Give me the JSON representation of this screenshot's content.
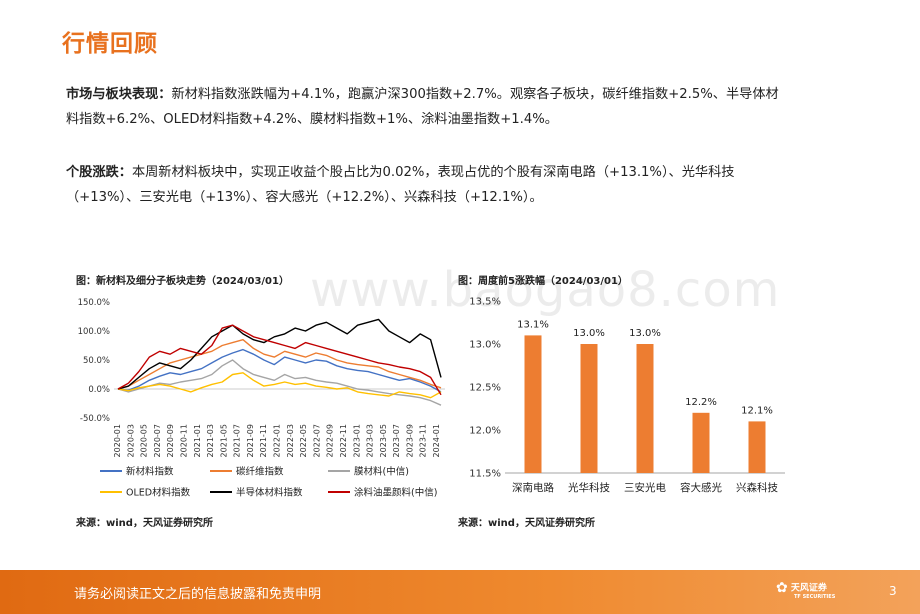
{
  "section_title": "行情回顾",
  "para1": {
    "label": "市场与板块表现：",
    "line1": "新材料指数涨跌幅为+4.1%，跑赢沪深300指数+2.7%。观察各子板块，碳纤维指数+2.5%、半导体材",
    "line2": "料指数+6.2%、OLED材料指数+4.2%、膜材料指数+1%、涂料油墨指数+1.4%。"
  },
  "para2": {
    "label": "个股涨跌：",
    "line1": "本周新材料板块中，实现正收益个股占比为0.02%，表现占优的个股有深南电路（+13.1%）、光华科技",
    "line2": "（+13%）、三安光电（+13%）、容大感光（+12.2%）、兴森科技（+12.1%）。"
  },
  "watermark": "www.baogao8.com",
  "chart1": {
    "title": "图：新材料及细分子板块走势（2024/03/01）",
    "source": "来源：wind，天风证券研究所"
  },
  "chart2": {
    "title": "图：周度前5涨跌幅（2024/03/01）",
    "source": "来源：wind，天风证券研究所"
  },
  "footer": {
    "disclaimer": "请务必阅读正文之后的信息披露和免责申明",
    "logo_text": "天风证券",
    "logo_sub": "TF SECURITIES",
    "page": "3"
  },
  "chart_data": [
    {
      "type": "line",
      "title": "图：新材料及细分子板块走势（2024/03/01）",
      "x_ticks": [
        "2020-01",
        "2020-03",
        "2020-05",
        "2020-07",
        "2020-09",
        "2020-11",
        "2021-01",
        "2021-03",
        "2021-05",
        "2021-07",
        "2021-09",
        "2021-11",
        "2022-01",
        "2022-03",
        "2022-05",
        "2022-07",
        "2022-09",
        "2022-11",
        "2023-01",
        "2023-03",
        "2023-05",
        "2023-07",
        "2023-09",
        "2023-11",
        "2024-01"
      ],
      "y_ticks": [
        "150.0%",
        "100.0%",
        "50.0%",
        "0.0%",
        "-50.0%"
      ],
      "ylim": [
        -50,
        150
      ],
      "series": [
        {
          "name": "新材料指数",
          "color": "#4472c4",
          "values": [
            0,
            -2,
            5,
            15,
            22,
            28,
            25,
            30,
            35,
            45,
            55,
            62,
            68,
            60,
            50,
            42,
            55,
            50,
            45,
            50,
            48,
            40,
            35,
            32,
            30,
            25,
            20,
            15,
            18,
            12,
            5,
            -5
          ]
        },
        {
          "name": "碳纤维指数",
          "color": "#ed7d31",
          "values": [
            0,
            5,
            15,
            25,
            35,
            45,
            50,
            55,
            60,
            65,
            75,
            80,
            85,
            70,
            60,
            55,
            65,
            60,
            55,
            62,
            58,
            50,
            45,
            42,
            40,
            38,
            30,
            25,
            20,
            15,
            8,
            2
          ]
        },
        {
          "name": "膜材料(中信)",
          "color": "#a5a5a5",
          "values": [
            0,
            -5,
            0,
            5,
            10,
            8,
            12,
            15,
            18,
            25,
            40,
            50,
            35,
            25,
            20,
            15,
            25,
            18,
            20,
            15,
            12,
            10,
            5,
            0,
            -2,
            -5,
            -8,
            -10,
            -12,
            -15,
            -20,
            -28
          ]
        },
        {
          "name": "OLED材料指数",
          "color": "#ffc000",
          "values": [
            0,
            -3,
            2,
            5,
            8,
            5,
            0,
            -5,
            2,
            8,
            12,
            25,
            28,
            15,
            5,
            8,
            12,
            8,
            10,
            5,
            3,
            0,
            2,
            -5,
            -8,
            -10,
            -12,
            -5,
            -8,
            -10,
            -15,
            -5
          ]
        },
        {
          "name": "半导体材料指数",
          "color": "#000000",
          "values": [
            0,
            5,
            20,
            35,
            45,
            40,
            35,
            50,
            70,
            90,
            100,
            110,
            95,
            85,
            80,
            90,
            95,
            105,
            100,
            110,
            115,
            105,
            95,
            110,
            115,
            120,
            100,
            90,
            80,
            95,
            85,
            20
          ]
        },
        {
          "name": "涂料油墨颜料(中信)",
          "color": "#c00000",
          "values": [
            0,
            10,
            30,
            55,
            65,
            60,
            70,
            65,
            60,
            75,
            105,
            110,
            100,
            90,
            85,
            80,
            75,
            70,
            80,
            75,
            70,
            65,
            60,
            55,
            50,
            45,
            42,
            38,
            35,
            30,
            20,
            -10
          ]
        }
      ]
    },
    {
      "type": "bar",
      "title": "图：周度前5涨跌幅（2024/03/01）",
      "categories": [
        "深南电路",
        "光华科技",
        "三安光电",
        "容大感光",
        "兴森科技"
      ],
      "values": [
        13.1,
        13.0,
        13.0,
        12.2,
        12.1
      ],
      "labels": [
        "13.1%",
        "13.0%",
        "13.0%",
        "12.2%",
        "12.1%"
      ],
      "y_ticks": [
        "13.5%",
        "13.0%",
        "12.5%",
        "12.0%",
        "11.5%"
      ],
      "ylim": [
        11.5,
        13.5
      ],
      "color": "#ed7d31"
    }
  ]
}
